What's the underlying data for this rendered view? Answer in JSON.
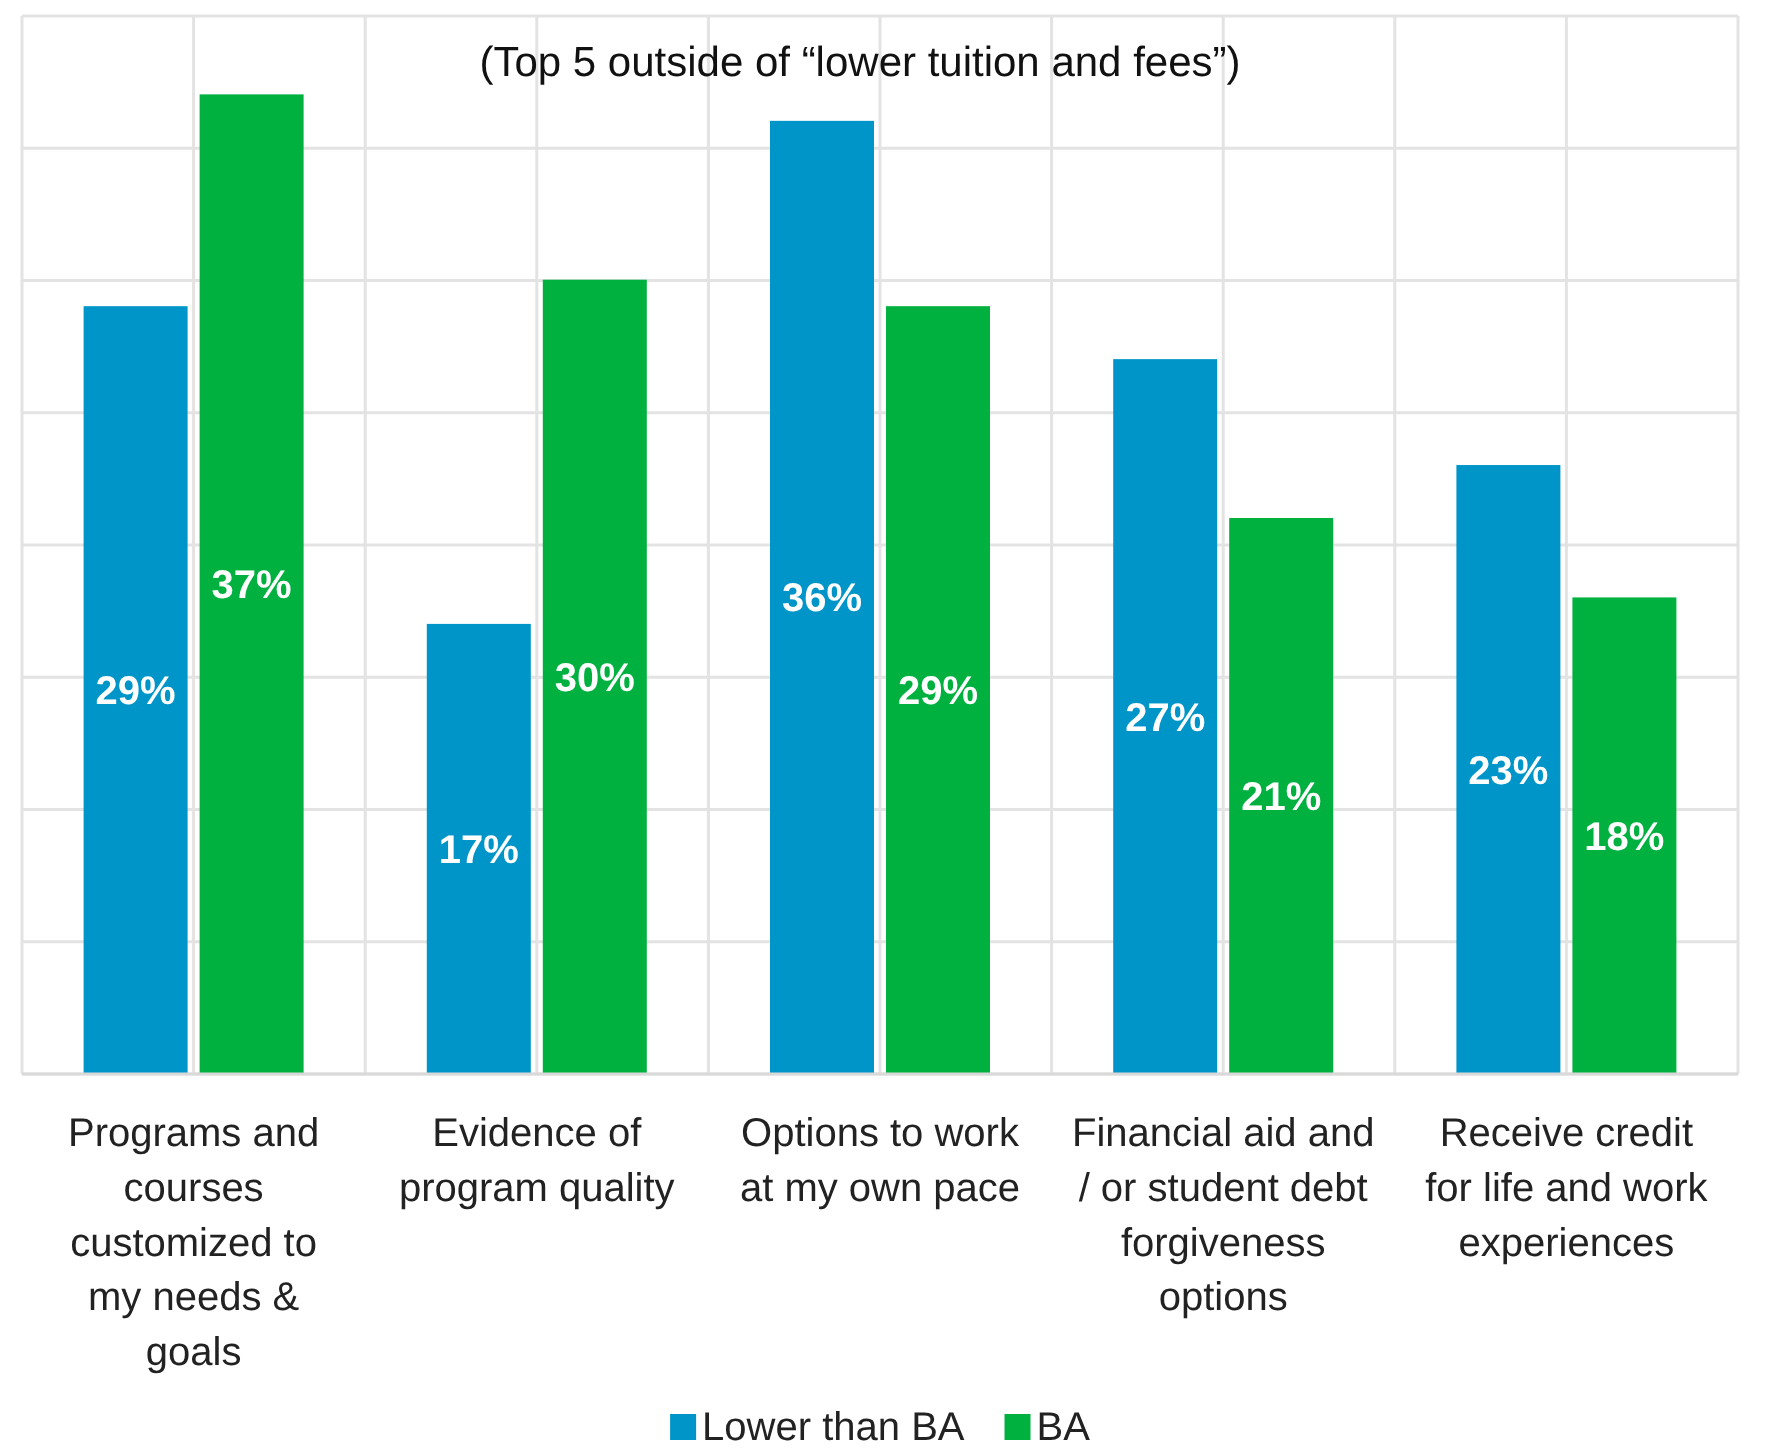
{
  "chart_data": {
    "type": "bar",
    "title": "(Top 5 outside of “lower tuition and fees”)",
    "categories": [
      "Programs and courses customized to my needs & goals",
      "Evidence of program quality",
      "Options to work at my own pace",
      "Financial aid and / or student debt forgiveness options",
      "Receive credit for life and work experiences"
    ],
    "series": [
      {
        "name": "Lower than BA",
        "color": "#0095c8",
        "values": [
          29,
          17,
          36,
          27,
          23
        ],
        "value_labels": [
          "29%",
          "17%",
          "36%",
          "27%",
          "23%"
        ]
      },
      {
        "name": "BA",
        "color": "#00b140",
        "values": [
          37,
          30,
          29,
          21,
          18
        ],
        "value_labels": [
          "37%",
          "30%",
          "29%",
          "21%",
          "18%"
        ]
      }
    ],
    "tick_labels": "x",
    "grid": true,
    "legend": "bottom"
  }
}
